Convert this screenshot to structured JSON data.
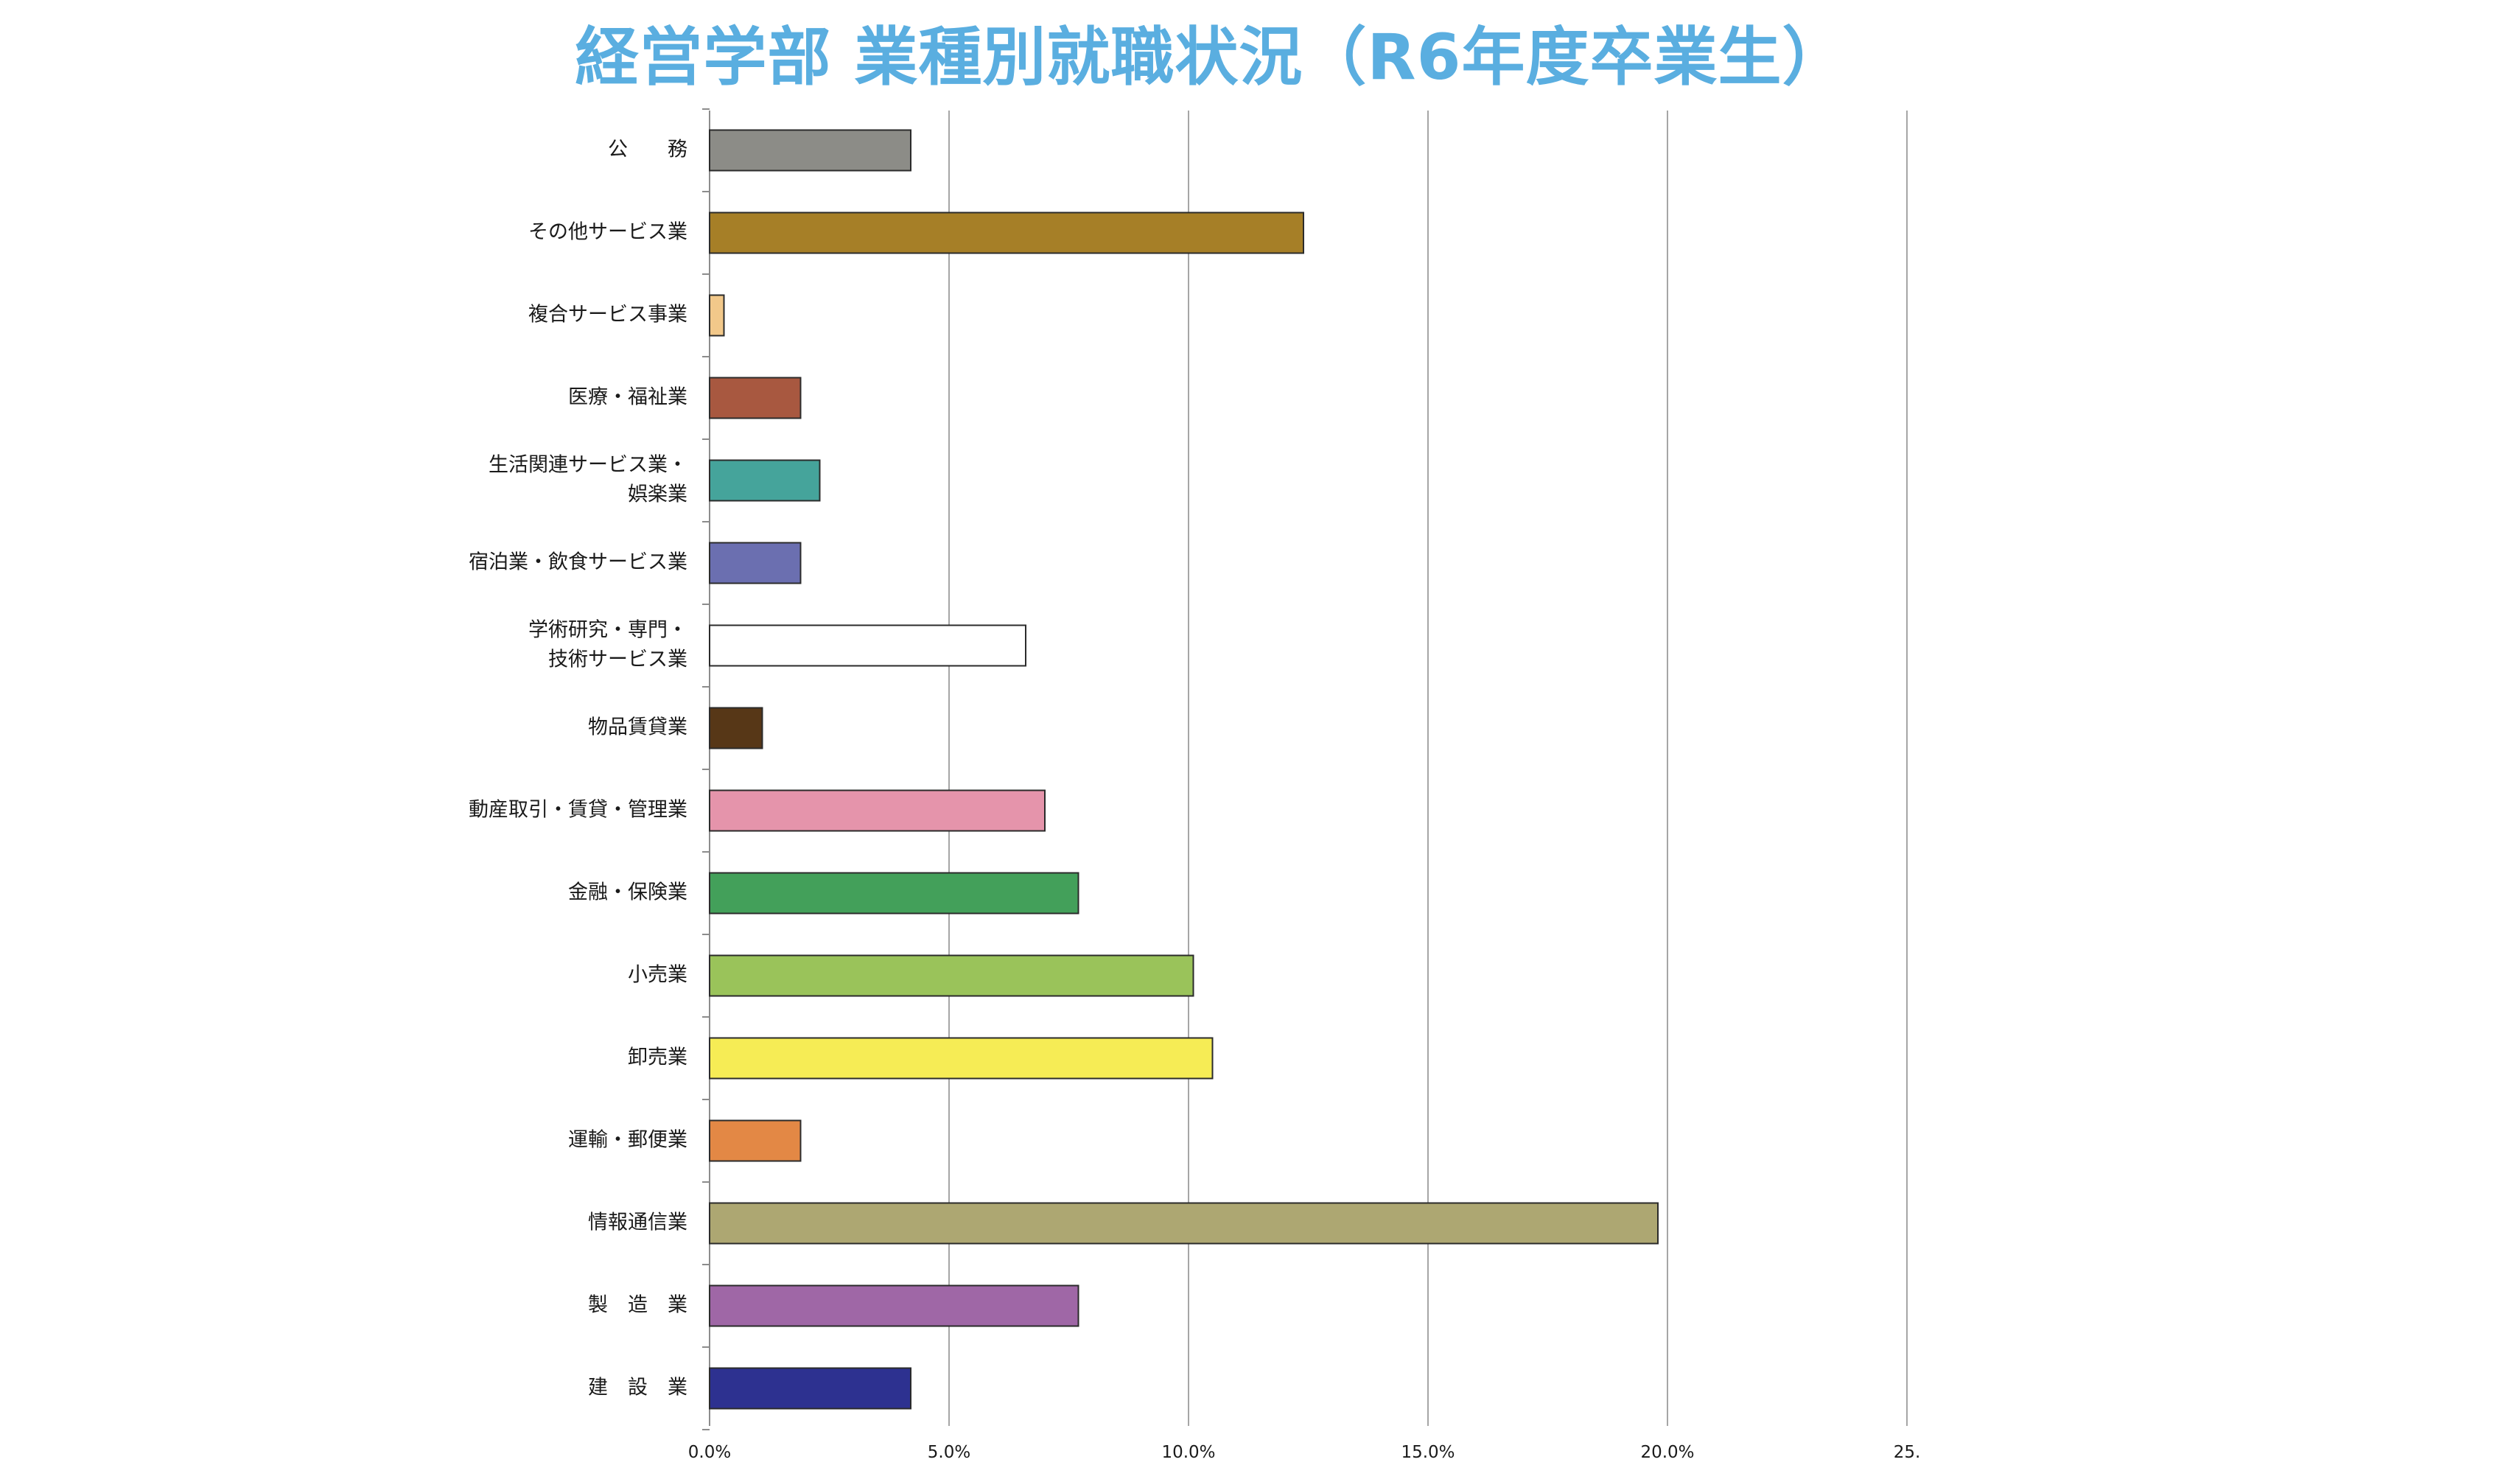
{
  "chart_data": {
    "type": "bar",
    "orientation": "horizontal",
    "title": "経営学部 業種別就職状況（R6年度卒業生）",
    "categories": [
      "公　　務",
      "その他サービス業",
      "複合サービス事業",
      "医療・福祉業",
      "生活関連サービス業・\n娯楽業",
      "宿泊業・飲食サービス業",
      "学術研究・専門・\n技術サービス業",
      "物品賃貸業",
      "動産取引・賃貸・管理業",
      "金融・保険業",
      "小売業",
      "卸売業",
      "運輸・郵便業",
      "情報通信業",
      "製　造　業",
      "建　設　業"
    ],
    "values": [
      4.2,
      12.4,
      0.3,
      1.9,
      2.3,
      1.9,
      6.6,
      1.1,
      7.0,
      7.7,
      10.1,
      10.5,
      1.9,
      19.8,
      7.7,
      4.2
    ],
    "colors": [
      "#8c8c87",
      "#a67f27",
      "#f2c88a",
      "#a85840",
      "#45a49b",
      "#6b6fb0",
      "#ffffff",
      "#573717",
      "#e594ab",
      "#43a05a",
      "#9ac35a",
      "#f6ec55",
      "#e38845",
      "#ada772",
      "#9f67a6",
      "#2d3190"
    ],
    "xlim": [
      0,
      25
    ],
    "x_ticks": [
      "0.0%",
      "5.0%",
      "10.0%",
      "15.0%",
      "20.0%",
      "25."
    ],
    "x_tick_values": [
      0,
      5,
      10,
      15,
      20,
      25
    ],
    "grid": true,
    "xlabel": "",
    "ylabel": ""
  }
}
